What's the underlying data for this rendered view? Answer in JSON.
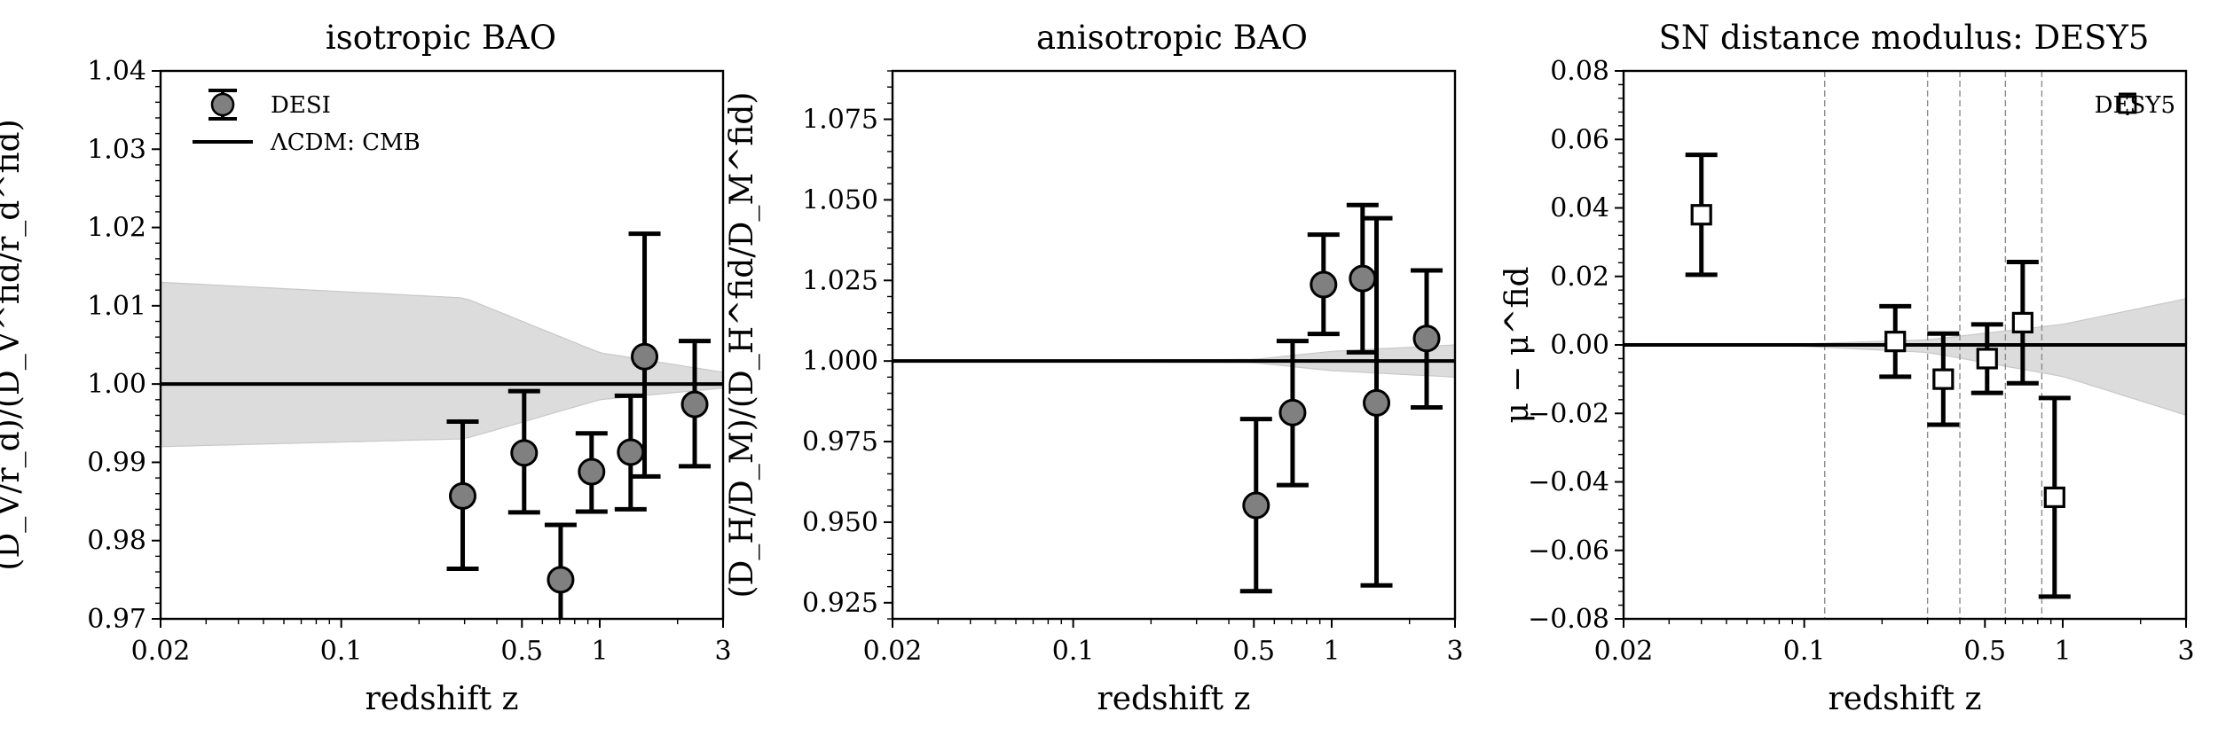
{
  "chart_data": [
    {
      "type": "scatter",
      "title": "isotropic BAO",
      "xlabel": "redshift z",
      "ylabel": "(D_V/r_d)/(D_V^fid/r_d^fid)",
      "xscale": "log",
      "xlim": [
        0.02,
        3
      ],
      "ylim": [
        0.97,
        1.04
      ],
      "xticks": [
        "0.02",
        "0.1",
        "0.5",
        "1",
        "3"
      ],
      "yticks": [
        "0.97",
        "0.98",
        "0.99",
        "1.00",
        "1.01",
        "1.02",
        "1.03",
        "1.04"
      ],
      "legend_position": "top-left",
      "series": [
        {
          "name": "DESI",
          "kind": "points-with-errorbars",
          "marker": "circle",
          "color": "#808080",
          "points": [
            {
              "x": 0.295,
              "y": 0.9857,
              "ylo": 0.9764,
              "yhi": 0.9952
            },
            {
              "x": 0.51,
              "y": 0.9912,
              "ylo": 0.9836,
              "yhi": 0.9991
            },
            {
              "x": 0.706,
              "y": 0.975,
              "ylo": 0.968,
              "yhi": 0.982
            },
            {
              "x": 0.93,
              "y": 0.9888,
              "ylo": 0.9837,
              "yhi": 0.9937
            },
            {
              "x": 1.317,
              "y": 0.9913,
              "ylo": 0.984,
              "yhi": 0.9985
            },
            {
              "x": 1.491,
              "y": 1.0035,
              "ylo": 0.9882,
              "yhi": 1.0192
            },
            {
              "x": 2.33,
              "y": 0.9974,
              "ylo": 0.9895,
              "yhi": 1.0055
            }
          ]
        },
        {
          "name": "ΛCDM: CMB",
          "kind": "line",
          "color": "#000000",
          "value": 1.0,
          "band": {
            "x": [
              0.02,
              0.3,
              1.0,
              3.0
            ],
            "lo": [
              0.992,
              0.993,
              0.998,
              0.9995
            ],
            "hi": [
              1.013,
              1.011,
              1.004,
              1.0015
            ]
          }
        }
      ]
    },
    {
      "type": "scatter",
      "title": "anisotropic BAO",
      "xlabel": "redshift z",
      "ylabel": "(D_H/D_M)/(D_H^fid/D_M^fid)",
      "xscale": "log",
      "xlim": [
        0.02,
        3
      ],
      "ylim": [
        0.92,
        1.09
      ],
      "xticks": [
        "0.02",
        "0.1",
        "0.5",
        "1",
        "3"
      ],
      "yticks": [
        "0.925",
        "0.950",
        "0.975",
        "1.000",
        "1.025",
        "1.050",
        "1.075"
      ],
      "series": [
        {
          "kind": "points-with-errorbars",
          "marker": "circle",
          "color": "#808080",
          "points": [
            {
              "x": 0.51,
              "y": 0.9552,
              "ylo": 0.9286,
              "yhi": 0.982
            },
            {
              "x": 0.706,
              "y": 0.984,
              "ylo": 0.9615,
              "yhi": 1.0062
            },
            {
              "x": 0.93,
              "y": 1.0237,
              "ylo": 1.0084,
              "yhi": 1.0392
            },
            {
              "x": 1.317,
              "y": 1.0256,
              "ylo": 1.0027,
              "yhi": 1.0484
            },
            {
              "x": 1.491,
              "y": 0.987,
              "ylo": 0.9304,
              "yhi": 1.0443
            },
            {
              "x": 2.33,
              "y": 1.007,
              "ylo": 0.9856,
              "yhi": 1.0281
            }
          ]
        },
        {
          "kind": "line",
          "color": "#000000",
          "value": 1.0,
          "band": {
            "x": [
              0.02,
              0.5,
              1.0,
              3.0
            ],
            "lo": [
              1.0,
              0.9995,
              0.997,
              0.995
            ],
            "hi": [
              1.0,
              1.0005,
              1.003,
              1.005
            ]
          }
        }
      ]
    },
    {
      "type": "scatter",
      "title": "SN distance modulus: DESY5",
      "xlabel": "redshift z",
      "ylabel": "μ − μ^fid",
      "xscale": "log",
      "xlim": [
        0.02,
        3
      ],
      "ylim": [
        -0.08,
        0.08
      ],
      "xticks": [
        "0.02",
        "0.1",
        "0.5",
        "1",
        "3"
      ],
      "yticks": [
        "−0.08",
        "−0.06",
        "−0.04",
        "−0.02",
        "0.00",
        "0.02",
        "0.04",
        "0.06",
        "0.08"
      ],
      "legend_position": "top-right",
      "vlines_x": [
        0.12,
        0.3,
        0.4,
        0.6,
        0.83
      ],
      "series": [
        {
          "name": "DESY5",
          "kind": "points-with-errorbars",
          "marker": "square",
          "color": "#ffffff",
          "points": [
            {
              "x": 0.04,
              "y": 0.038,
              "ylo": 0.0205,
              "yhi": 0.0555
            },
            {
              "x": 0.225,
              "y": 0.001,
              "ylo": -0.0093,
              "yhi": 0.0113
            },
            {
              "x": 0.345,
              "y": -0.01,
              "ylo": -0.0233,
              "yhi": 0.0033
            },
            {
              "x": 0.51,
              "y": -0.004,
              "ylo": -0.014,
              "yhi": 0.006
            },
            {
              "x": 0.7,
              "y": 0.0065,
              "ylo": -0.0112,
              "yhi": 0.0242
            },
            {
              "x": 0.93,
              "y": -0.0445,
              "ylo": -0.0735,
              "yhi": -0.0155
            }
          ]
        },
        {
          "kind": "line",
          "color": "#000000",
          "value": 0.0,
          "band": {
            "x": [
              0.02,
              0.1,
              0.3,
              1.0,
              3.0
            ],
            "lo": [
              0.0,
              -0.0004,
              -0.0022,
              -0.0092,
              -0.0205
            ],
            "hi": [
              0.0,
              0.0003,
              0.0015,
              0.006,
              0.0135
            ]
          }
        }
      ]
    }
  ]
}
